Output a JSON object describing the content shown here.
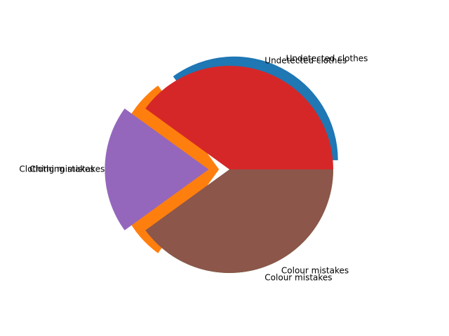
{
  "chart_data": [
    {
      "type": "pie",
      "labels": [
        "Undetected clothes",
        "Clothing mistakes",
        "Colour mistakes"
      ],
      "values": [
        35,
        30,
        35
      ],
      "colors": [
        "#1f77b4",
        "#ff7f0e",
        "#2ca02c"
      ],
      "explode": [
        0.1,
        0.1,
        0
      ],
      "start_angle": 0
    },
    {
      "type": "pie",
      "labels": [
        "Undetected clothes",
        "Clothing mistakes",
        "Colour mistakes"
      ],
      "values": [
        40,
        20,
        40
      ],
      "colors": [
        "#d62728",
        "#9467bd",
        "#8c564b"
      ],
      "explode": [
        0,
        0.2,
        0
      ],
      "start_angle": 0
    }
  ]
}
